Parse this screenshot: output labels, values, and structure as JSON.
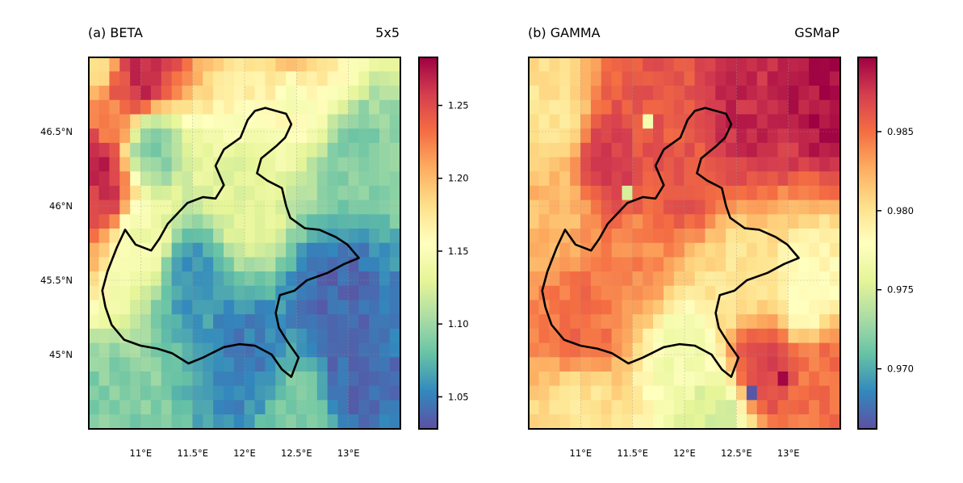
{
  "chart_data": [
    {
      "type": "heatmap",
      "title_left": "(a) BETA",
      "title_right": "5x5",
      "x_ticks": [
        11.0,
        11.5,
        12.0,
        12.5,
        13.0
      ],
      "x_tick_labels": [
        "11°E",
        "11.5°E",
        "12°E",
        "12.5°E",
        "13°E"
      ],
      "y_ticks": [
        46.5,
        46.0,
        45.5,
        45.0
      ],
      "y_tick_labels": [
        "46.5°N",
        "46°N",
        "45.5°N",
        "45°N"
      ],
      "xlim": [
        10.5,
        13.5
      ],
      "ylim": [
        44.5,
        47.0
      ],
      "colorbar": {
        "range": [
          1.028,
          1.283
        ],
        "ticks": [
          1.05,
          1.1,
          1.15,
          1.2,
          1.25
        ],
        "tick_labels": [
          "1.05",
          "1.10",
          "1.15",
          "1.20",
          "1.25"
        ]
      },
      "grid": true,
      "field": [
        {
          "lat": 46.9,
          "lon": 10.6,
          "value": 1.18
        },
        {
          "lat": 46.8,
          "lon": 10.8,
          "value": 1.25
        },
        {
          "lat": 46.85,
          "lon": 11.0,
          "value": 1.27
        },
        {
          "lat": 46.6,
          "lon": 10.7,
          "value": 1.22
        },
        {
          "lat": 46.3,
          "lon": 10.55,
          "value": 1.27
        },
        {
          "lat": 46.1,
          "lon": 10.6,
          "value": 1.26
        },
        {
          "lat": 46.4,
          "lon": 11.1,
          "value": 1.09
        },
        {
          "lat": 46.8,
          "lon": 12.5,
          "value": 1.15
        },
        {
          "lat": 46.95,
          "lon": 12.5,
          "value": 1.2
        },
        {
          "lat": 46.3,
          "lon": 13.1,
          "value": 1.09
        },
        {
          "lat": 46.0,
          "lon": 12.0,
          "value": 1.13
        },
        {
          "lat": 45.75,
          "lon": 11.0,
          "value": 1.14
        },
        {
          "lat": 45.5,
          "lon": 11.5,
          "value": 1.06
        },
        {
          "lat": 45.4,
          "lon": 12.9,
          "value": 1.04
        },
        {
          "lat": 45.0,
          "lon": 12.0,
          "value": 1.05
        },
        {
          "lat": 44.8,
          "lon": 13.0,
          "value": 1.04
        },
        {
          "lat": 44.6,
          "lon": 10.7,
          "value": 1.09
        },
        {
          "lat": 44.6,
          "lon": 12.6,
          "value": 1.09
        }
      ]
    },
    {
      "type": "heatmap",
      "title_left": "(b) GAMMA",
      "title_right": "GSMaP",
      "x_ticks": [
        11.0,
        11.5,
        12.0,
        12.5,
        13.0
      ],
      "x_tick_labels": [
        "11°E",
        "11.5°E",
        "12°E",
        "12.5°E",
        "13°E"
      ],
      "xlim": [
        10.5,
        13.5
      ],
      "ylim": [
        44.5,
        47.0
      ],
      "colorbar": {
        "range": [
          0.9662,
          0.9897
        ],
        "ticks": [
          0.97,
          0.975,
          0.98,
          0.985
        ],
        "tick_labels": [
          "0.970",
          "0.975",
          "0.980",
          "0.985"
        ]
      },
      "grid": true,
      "field": [
        {
          "lat": 46.6,
          "lon": 12.6,
          "value": 0.988
        },
        {
          "lat": 46.75,
          "lon": 13.4,
          "value": 0.989
        },
        {
          "lat": 46.3,
          "lon": 11.3,
          "value": 0.987
        },
        {
          "lat": 46.6,
          "lon": 11.7,
          "value": 0.986
        },
        {
          "lat": 46.6,
          "lon": 10.7,
          "value": 0.98
        },
        {
          "lat": 46.0,
          "lon": 10.7,
          "value": 0.982
        },
        {
          "lat": 46.2,
          "lon": 12.0,
          "value": 0.986
        },
        {
          "lat": 45.6,
          "lon": 11.5,
          "value": 0.984
        },
        {
          "lat": 45.5,
          "lon": 12.5,
          "value": 0.98
        },
        {
          "lat": 45.4,
          "lon": 13.2,
          "value": 0.978
        },
        {
          "lat": 45.0,
          "lon": 12.0,
          "value": 0.977
        },
        {
          "lat": 44.9,
          "lon": 12.75,
          "value": 0.987
        },
        {
          "lat": 44.6,
          "lon": 11.0,
          "value": 0.98
        },
        {
          "lat": 44.6,
          "lon": 12.3,
          "value": 0.975
        },
        {
          "lat": 45.2,
          "lon": 11.0,
          "value": 0.985
        },
        {
          "lat": 44.9,
          "lon": 13.4,
          "value": 0.985
        }
      ],
      "outliers": [
        {
          "lat": 46.1,
          "lon": 11.45,
          "value": 0.975
        },
        {
          "lat": 46.55,
          "lon": 11.65,
          "value": 0.977
        },
        {
          "lat": 44.75,
          "lon": 12.65,
          "value": 0.9665
        },
        {
          "lat": 44.85,
          "lon": 12.95,
          "value": 0.9895
        }
      ]
    }
  ]
}
